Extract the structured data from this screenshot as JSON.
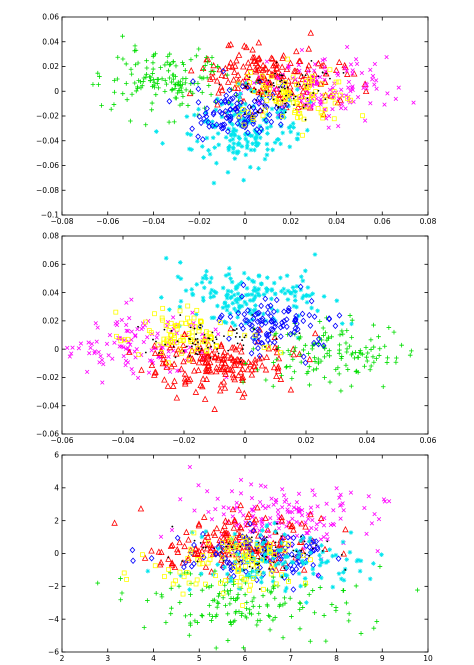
{
  "chart_data": [
    {
      "type": "scatter",
      "title": "",
      "xlabel": "",
      "ylabel": "",
      "xlim": [
        -0.08,
        0.08
      ],
      "ylim": [
        -0.1,
        0.06
      ],
      "xticks": [
        -0.08,
        -0.06,
        -0.04,
        -0.02,
        0,
        0.02,
        0.04,
        0.06,
        0.08
      ],
      "yticks": [
        -0.1,
        -0.08,
        -0.06,
        -0.04,
        -0.02,
        0,
        0.02,
        0.04,
        0.06
      ],
      "xtick_labels": [
        "−0.08",
        "−0.06",
        "−0.04",
        "−0.02",
        "0",
        "0.02",
        "0.04",
        "0.06",
        "0.08"
      ],
      "ytick_labels": [
        "−0.1",
        "−0.08",
        "−0.06",
        "−0.04",
        "−0.02",
        "0",
        "0.02",
        "0.04",
        "0.06"
      ],
      "grid": false,
      "series": [
        {
          "color": "#ff0000",
          "marker": "triangle",
          "center": [
            0.01,
            0.012
          ],
          "spread": [
            0.016,
            0.012
          ],
          "count": 180
        },
        {
          "color": "#00dd00",
          "marker": "plus",
          "center": [
            -0.035,
            0.008
          ],
          "spread": [
            0.014,
            0.012
          ],
          "count": 150
        },
        {
          "color": "#ff00ff",
          "marker": "x",
          "center": [
            0.035,
            0.003
          ],
          "spread": [
            0.014,
            0.013
          ],
          "count": 140
        },
        {
          "color": "#00e5ee",
          "marker": "asterisk",
          "center": [
            -0.002,
            -0.032
          ],
          "spread": [
            0.012,
            0.015
          ],
          "count": 170
        },
        {
          "color": "#0000ff",
          "marker": "diamond",
          "center": [
            -0.002,
            -0.016
          ],
          "spread": [
            0.011,
            0.011
          ],
          "count": 100
        },
        {
          "color": "#ffff00",
          "marker": "square",
          "center": [
            0.022,
            -0.006
          ],
          "spread": [
            0.012,
            0.01
          ],
          "count": 90
        },
        {
          "color": "#000000",
          "marker": "dot",
          "center": [
            0.015,
            0.0
          ],
          "spread": [
            0.01,
            0.01
          ],
          "count": 70
        }
      ]
    },
    {
      "type": "scatter",
      "title": "",
      "xlabel": "",
      "ylabel": "",
      "xlim": [
        -0.06,
        0.06
      ],
      "ylim": [
        -0.06,
        0.08
      ],
      "xticks": [
        -0.06,
        -0.04,
        -0.02,
        0,
        0.02,
        0.04,
        0.06
      ],
      "yticks": [
        -0.06,
        -0.04,
        -0.02,
        0,
        0.02,
        0.04,
        0.06,
        0.08
      ],
      "xtick_labels": [
        "−0.06",
        "−0.04",
        "−0.02",
        "0",
        "0.02",
        "0.04",
        "0.06"
      ],
      "ytick_labels": [
        "−0.06",
        "−0.04",
        "−0.02",
        "0",
        "0.02",
        "0.04",
        "0.06",
        "0.08"
      ],
      "grid": false,
      "series": [
        {
          "color": "#00e5ee",
          "marker": "asterisk",
          "center": [
            0.002,
            0.035
          ],
          "spread": [
            0.012,
            0.011
          ],
          "count": 170
        },
        {
          "color": "#ff00ff",
          "marker": "x",
          "center": [
            -0.035,
            0.003
          ],
          "spread": [
            0.013,
            0.011
          ],
          "count": 140
        },
        {
          "color": "#ff0000",
          "marker": "triangle",
          "center": [
            -0.01,
            -0.01
          ],
          "spread": [
            0.012,
            0.01
          ],
          "count": 180
        },
        {
          "color": "#00dd00",
          "marker": "plus",
          "center": [
            0.03,
            -0.003
          ],
          "spread": [
            0.012,
            0.011
          ],
          "count": 140
        },
        {
          "color": "#0000ff",
          "marker": "diamond",
          "center": [
            0.008,
            0.018
          ],
          "spread": [
            0.009,
            0.01
          ],
          "count": 100
        },
        {
          "color": "#ffff00",
          "marker": "square",
          "center": [
            -0.018,
            0.01
          ],
          "spread": [
            0.01,
            0.009
          ],
          "count": 90
        },
        {
          "color": "#000000",
          "marker": "dot",
          "center": [
            -0.012,
            0.005
          ],
          "spread": [
            0.01,
            0.008
          ],
          "count": 70
        }
      ]
    },
    {
      "type": "scatter",
      "title": "",
      "xlabel": "",
      "ylabel": "",
      "xlim": [
        2,
        10
      ],
      "ylim": [
        -6,
        6
      ],
      "xticks": [
        2,
        3,
        4,
        5,
        6,
        7,
        8,
        9,
        10
      ],
      "yticks": [
        -6,
        -4,
        -2,
        0,
        2,
        4,
        6
      ],
      "xtick_labels": [
        "2",
        "3",
        "4",
        "5",
        "6",
        "7",
        "8",
        "9",
        "10"
      ],
      "ytick_labels": [
        "−6",
        "−4",
        "−2",
        "0",
        "2",
        "4",
        "6"
      ],
      "grid": false,
      "series": [
        {
          "color": "#ff00ff",
          "marker": "x",
          "center": [
            6.9,
            2.2
          ],
          "spread": [
            1.1,
            1.1
          ],
          "count": 170
        },
        {
          "color": "#00dd00",
          "marker": "plus",
          "center": [
            6.0,
            -3.0
          ],
          "spread": [
            1.2,
            1.1
          ],
          "count": 160
        },
        {
          "color": "#ff0000",
          "marker": "triangle",
          "center": [
            5.9,
            0.6
          ],
          "spread": [
            0.9,
            0.9
          ],
          "count": 170
        },
        {
          "color": "#0000ff",
          "marker": "diamond",
          "center": [
            6.3,
            0.0
          ],
          "spread": [
            0.9,
            0.8
          ],
          "count": 110
        },
        {
          "color": "#00e5ee",
          "marker": "asterisk",
          "center": [
            6.8,
            -0.4
          ],
          "spread": [
            1.0,
            0.9
          ],
          "count": 130
        },
        {
          "color": "#ffff00",
          "marker": "square",
          "center": [
            5.7,
            -0.6
          ],
          "spread": [
            0.9,
            0.9
          ],
          "count": 100
        },
        {
          "color": "#000000",
          "marker": "dot",
          "center": [
            6.4,
            0.0
          ],
          "spread": [
            0.9,
            0.8
          ],
          "count": 60
        }
      ]
    }
  ]
}
